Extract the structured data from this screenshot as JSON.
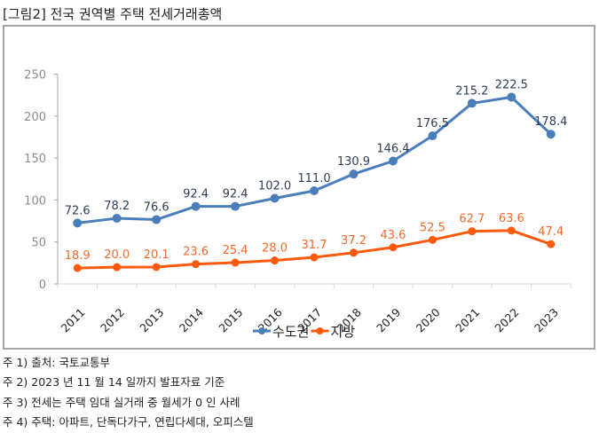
{
  "title": "[그림2] 전국 권역별 주택 전세거래총액",
  "notes": [
    "주 1) 출처: 국토교통부",
    "주 2) 2023 년 11 월 14 일까지 발표자료 기준",
    "주 3) 전세는 주택 임대 실거래 중 월세가 0 인 사례",
    "주 4) 주택: 아파트, 단독다가구, 연립다세대, 오피스텔"
  ],
  "chart_data": {
    "type": "line",
    "title": "",
    "xlabel": "",
    "ylabel": "",
    "categories": [
      "2011",
      "2012",
      "2013",
      "2014",
      "2015",
      "2016",
      "2017",
      "2018",
      "2019",
      "2020",
      "2021",
      "2022",
      "2023"
    ],
    "series": [
      {
        "name": "수도권",
        "color": "#4a7ebb",
        "label_color": "#2f3e56",
        "values": [
          72.6,
          78.2,
          76.6,
          92.4,
          92.4,
          102.0,
          111.0,
          130.9,
          146.4,
          176.5,
          215.2,
          222.5,
          178.4
        ]
      },
      {
        "name": "지방",
        "color": "#fe5a0c",
        "label_color": "#f7692a",
        "values": [
          18.9,
          20.0,
          20.1,
          23.6,
          25.4,
          28.0,
          31.7,
          37.2,
          43.6,
          52.5,
          62.7,
          63.6,
          47.4
        ]
      }
    ],
    "ylim": [
      0,
      250
    ],
    "yticks": [
      0,
      50,
      100,
      150,
      200,
      250
    ],
    "grid": false,
    "legend": "bottom-center",
    "data_labels": true
  }
}
